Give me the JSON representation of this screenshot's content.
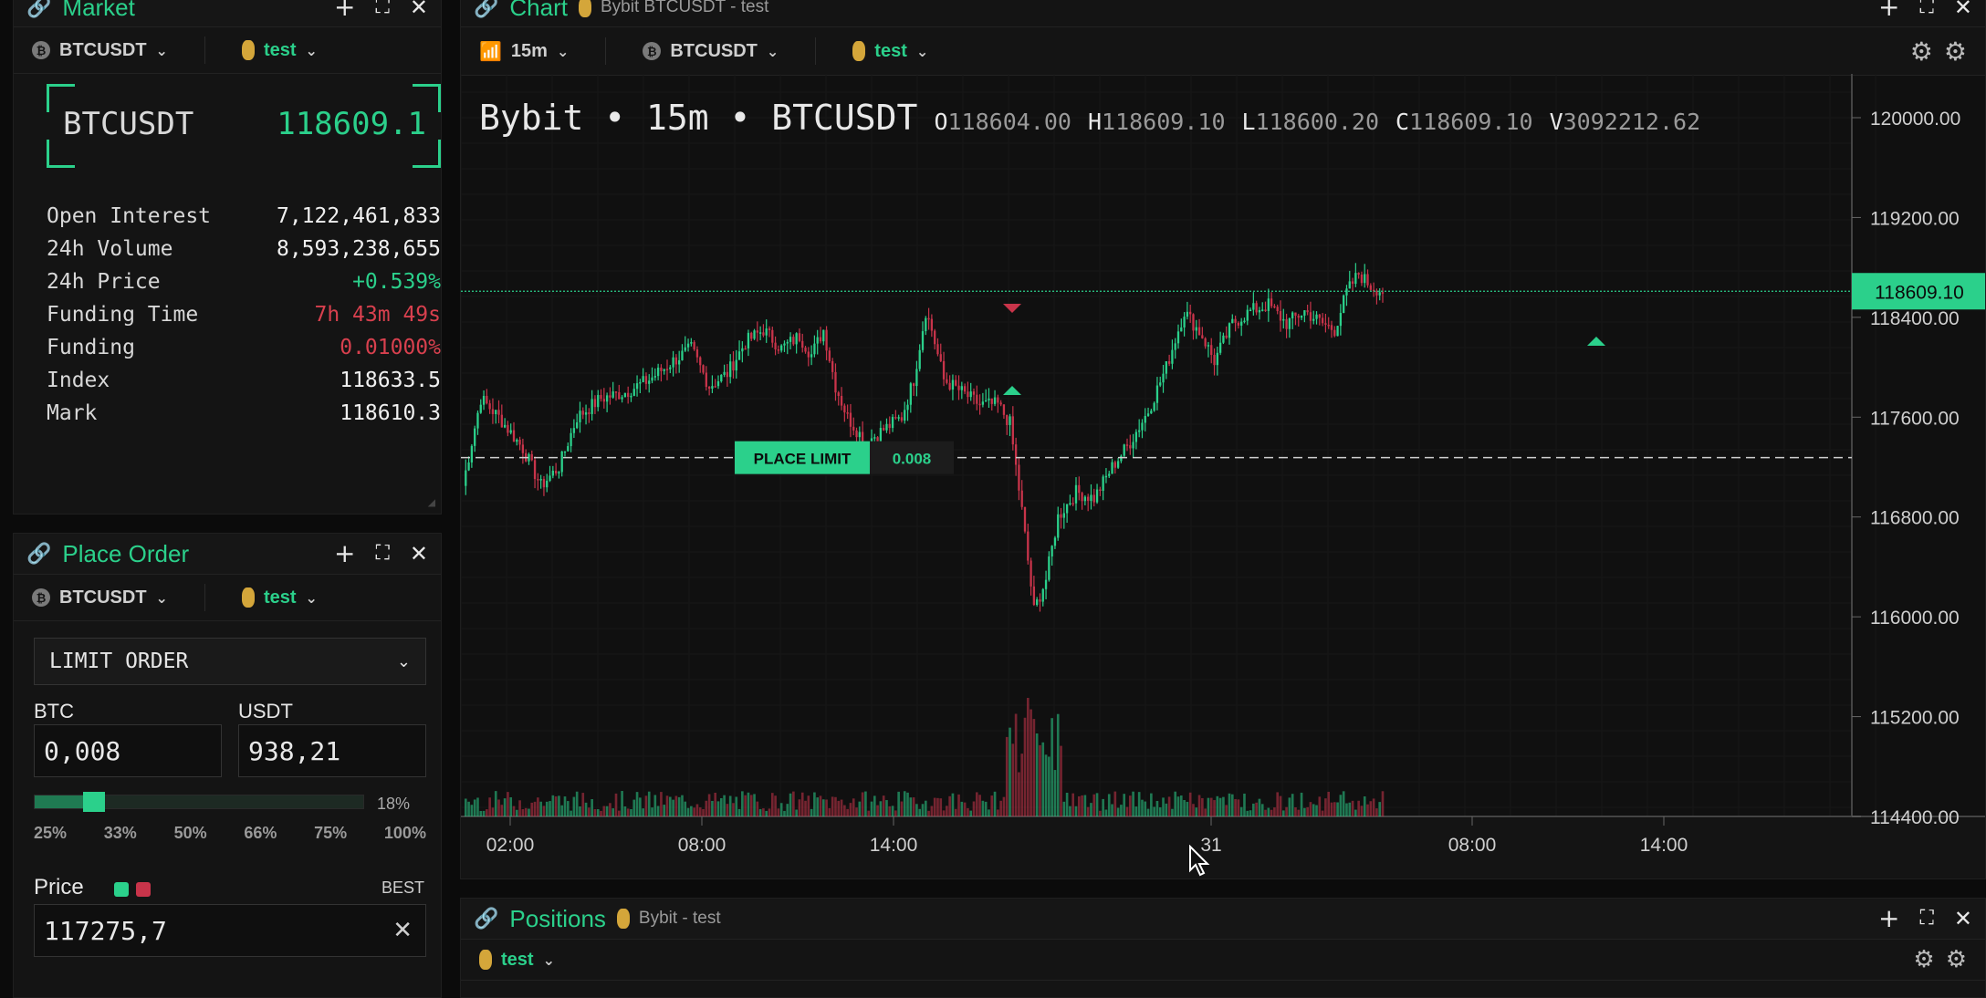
{
  "market": {
    "title": "Market",
    "symbol": "BTCUSDT",
    "account": "test",
    "price": "118609.1",
    "stats": [
      {
        "label": "Open Interest",
        "value": "7,122,461,833",
        "tone": "white"
      },
      {
        "label": "24h Volume",
        "value": "8,593,238,655",
        "tone": "white"
      },
      {
        "label": "24h Price",
        "value": "+0.539%",
        "tone": "green"
      },
      {
        "label": "Funding Time",
        "value": "7h 43m 49s",
        "tone": "red"
      },
      {
        "label": "Funding",
        "value": "0.01000%",
        "tone": "red"
      },
      {
        "label": "Index",
        "value": "118633.5",
        "tone": "white"
      },
      {
        "label": "Mark",
        "value": "118610.3",
        "tone": "white"
      }
    ]
  },
  "place_order": {
    "title": "Place Order",
    "symbol": "BTCUSDT",
    "account": "test",
    "order_type": "LIMIT ORDER",
    "base_label": "BTC",
    "quote_label": "USDT",
    "base_value": "0,008",
    "quote_value": "938,21",
    "slider_percent_label": "18%",
    "slider_fraction": 0.18,
    "presets": [
      "25%",
      "33%",
      "50%",
      "66%",
      "75%",
      "100%"
    ],
    "price_label": "Price",
    "best_label": "BEST",
    "price_value": "117275,7"
  },
  "chart": {
    "title": "Chart",
    "subtitle": "Bybit BTCUSDT - test",
    "interval": "15m",
    "symbol": "BTCUSDT",
    "account": "test",
    "legend_name": "Bybit • 15m • BTCUSDT",
    "ohlcv": [
      {
        "k": "O",
        "v": "118604.00"
      },
      {
        "k": "H",
        "v": "118609.10"
      },
      {
        "k": "L",
        "v": "118600.20"
      },
      {
        "k": "C",
        "v": "118609.10"
      },
      {
        "k": "V",
        "v": "3092212.62"
      }
    ],
    "place_limit_label": "PLACE LIMIT",
    "place_limit_qty": "0.008",
    "current_price_label": "118609.10",
    "colors": {
      "up": "#2bd08b",
      "down": "#c8344a",
      "bg": "#101010"
    }
  },
  "chart_data": {
    "type": "candlestick",
    "y_ticks": [
      "120000.00",
      "119200.00",
      "118400.00",
      "117600.00",
      "116800.00",
      "116000.00",
      "115200.00",
      "114400.00"
    ],
    "x_ticks": [
      "02:00",
      "08:00",
      "14:00",
      "31",
      "08:00",
      "14:00"
    ],
    "ylim": [
      114400,
      120000
    ],
    "current_price": 118609.1,
    "limit_price": 117275.7,
    "waypoints": [
      [
        0,
        117050
      ],
      [
        6,
        117750
      ],
      [
        12,
        117600
      ],
      [
        20,
        117350
      ],
      [
        26,
        117050
      ],
      [
        32,
        117200
      ],
      [
        38,
        117600
      ],
      [
        46,
        117750
      ],
      [
        54,
        117800
      ],
      [
        62,
        117900
      ],
      [
        70,
        118050
      ],
      [
        76,
        118150
      ],
      [
        82,
        117850
      ],
      [
        88,
        117950
      ],
      [
        94,
        118200
      ],
      [
        100,
        118300
      ],
      [
        106,
        118150
      ],
      [
        112,
        118250
      ],
      [
        116,
        118100
      ],
      [
        120,
        118300
      ],
      [
        124,
        117850
      ],
      [
        128,
        117600
      ],
      [
        134,
        117400
      ],
      [
        140,
        117500
      ],
      [
        146,
        117600
      ],
      [
        150,
        117900
      ],
      [
        154,
        118450
      ],
      [
        156,
        118300
      ],
      [
        160,
        117900
      ],
      [
        166,
        117800
      ],
      [
        172,
        117700
      ],
      [
        178,
        117700
      ],
      [
        182,
        117550
      ],
      [
        186,
        116850
      ],
      [
        190,
        116050
      ],
      [
        194,
        116300
      ],
      [
        198,
        116800
      ],
      [
        204,
        117000
      ],
      [
        210,
        116950
      ],
      [
        216,
        117200
      ],
      [
        222,
        117400
      ],
      [
        228,
        117650
      ],
      [
        234,
        118000
      ],
      [
        240,
        118450
      ],
      [
        246,
        118250
      ],
      [
        250,
        118050
      ],
      [
        256,
        118350
      ],
      [
        262,
        118450
      ],
      [
        268,
        118500
      ],
      [
        274,
        118350
      ],
      [
        280,
        118450
      ],
      [
        286,
        118350
      ],
      [
        290,
        118300
      ],
      [
        294,
        118600
      ],
      [
        298,
        118750
      ],
      [
        302,
        118650
      ],
      [
        306,
        118609
      ]
    ]
  },
  "positions": {
    "title": "Positions",
    "subtitle": "Bybit - test",
    "account": "test"
  }
}
